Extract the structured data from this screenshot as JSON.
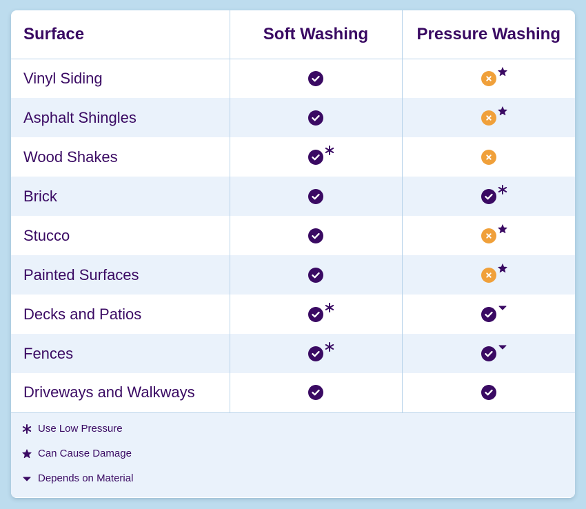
{
  "colors": {
    "purple": "#3a0a63",
    "orange": "#f0a03a",
    "stripe": "#eaf2fb",
    "border": "#b8d3ea",
    "background": "#bddcee"
  },
  "header": {
    "surface": "Surface",
    "soft": "Soft Washing",
    "pressure": "Pressure Washing"
  },
  "rows": [
    {
      "surface": "Vinyl Siding",
      "soft": {
        "icon": "check",
        "note": ""
      },
      "pressure": {
        "icon": "x",
        "note": "damage"
      }
    },
    {
      "surface": "Asphalt Shingles",
      "soft": {
        "icon": "check",
        "note": ""
      },
      "pressure": {
        "icon": "x",
        "note": "damage"
      }
    },
    {
      "surface": "Wood Shakes",
      "soft": {
        "icon": "check",
        "note": "low"
      },
      "pressure": {
        "icon": "x",
        "note": ""
      }
    },
    {
      "surface": "Brick",
      "soft": {
        "icon": "check",
        "note": ""
      },
      "pressure": {
        "icon": "check",
        "note": "low"
      }
    },
    {
      "surface": "Stucco",
      "soft": {
        "icon": "check",
        "note": ""
      },
      "pressure": {
        "icon": "x",
        "note": "damage"
      }
    },
    {
      "surface": "Painted Surfaces",
      "soft": {
        "icon": "check",
        "note": ""
      },
      "pressure": {
        "icon": "x",
        "note": "damage"
      }
    },
    {
      "surface": "Decks and Patios",
      "soft": {
        "icon": "check",
        "note": "low"
      },
      "pressure": {
        "icon": "check",
        "note": "material"
      }
    },
    {
      "surface": "Fences",
      "soft": {
        "icon": "check",
        "note": "low"
      },
      "pressure": {
        "icon": "check",
        "note": "material"
      }
    },
    {
      "surface": "Driveways and Walkways",
      "soft": {
        "icon": "check",
        "note": ""
      },
      "pressure": {
        "icon": "check",
        "note": ""
      }
    }
  ],
  "legend": [
    {
      "symbol": "low",
      "label": "Use Low Pressure"
    },
    {
      "symbol": "damage",
      "label": "Can Cause Damage"
    },
    {
      "symbol": "material",
      "label": "Depends on Material"
    }
  ]
}
